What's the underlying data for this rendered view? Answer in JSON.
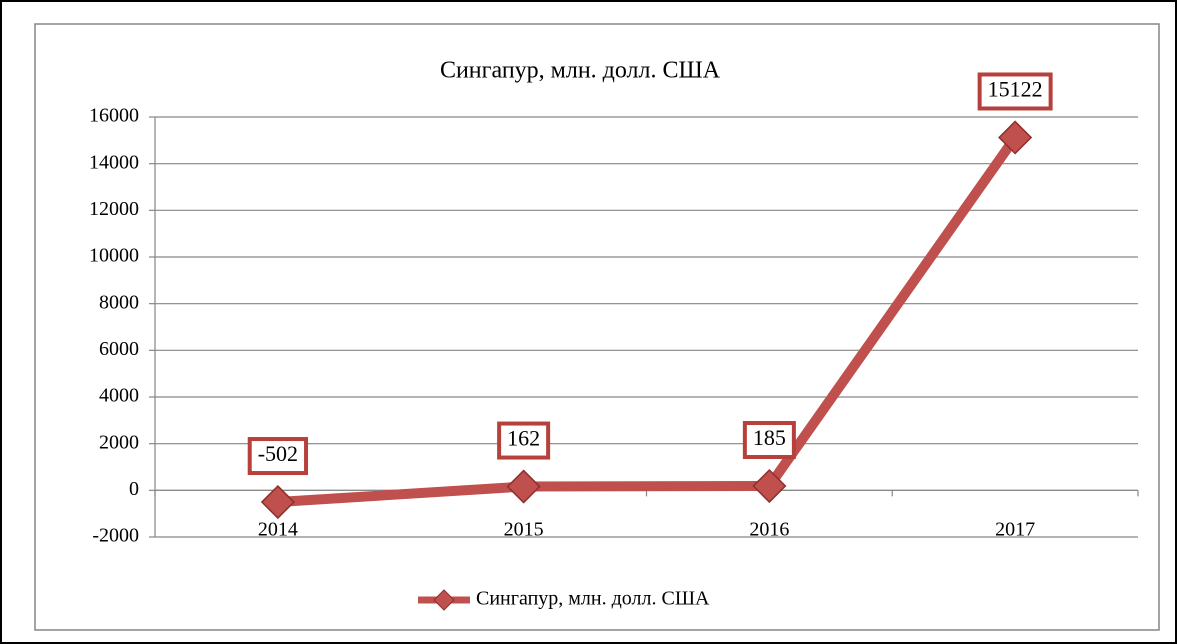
{
  "chart_data": {
    "type": "line",
    "title": "Сингапур, млн. долл. США",
    "categories": [
      "2014",
      "2015",
      "2016",
      "2017"
    ],
    "series": [
      {
        "name": "Сингапур, млн. долл. США",
        "color": "#c0504d",
        "values": [
          -502,
          162,
          185,
          15122
        ]
      }
    ],
    "ylim": [
      -2000,
      16000
    ],
    "yticks": [
      -2000,
      0,
      2000,
      4000,
      6000,
      8000,
      10000,
      12000,
      14000,
      16000
    ],
    "grid": true,
    "legend": "bottom"
  }
}
